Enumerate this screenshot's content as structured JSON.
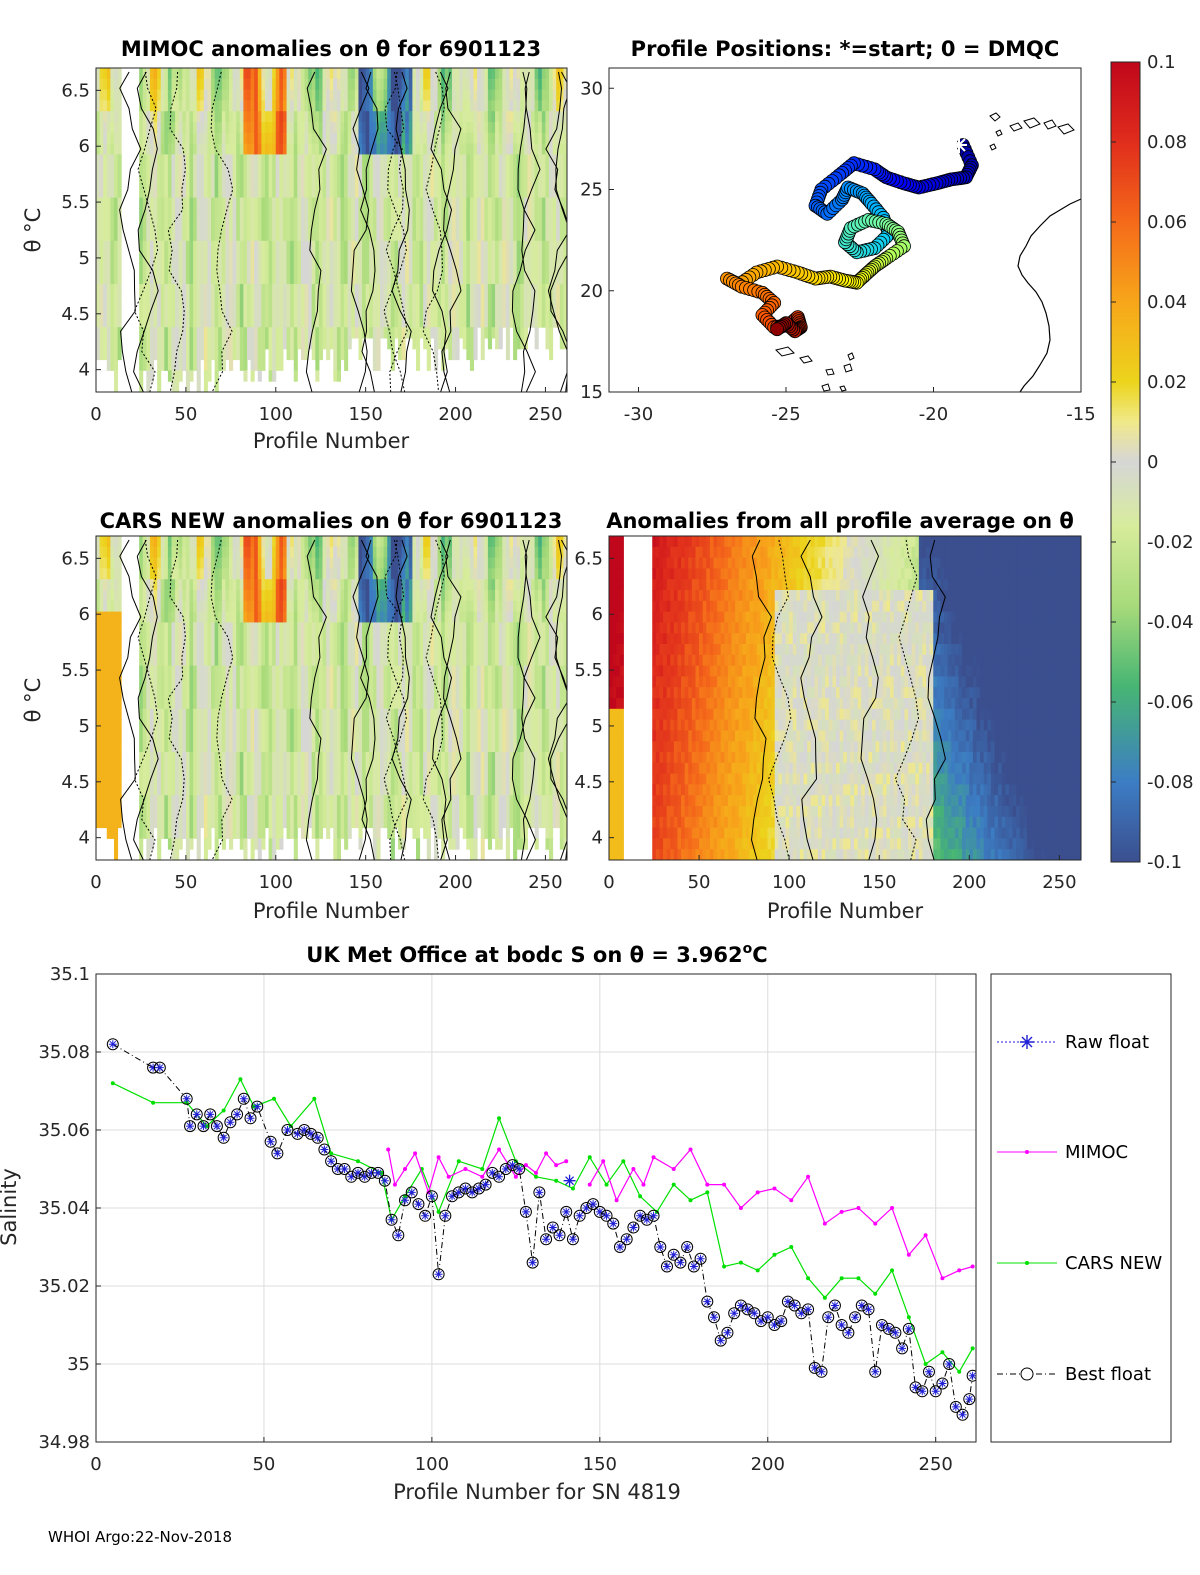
{
  "footer": "WHOI Argo:22-Nov-2018",
  "colors": {
    "raw": "#1f1fd6",
    "mimoc": "#ff00ff",
    "cars": "#00e000",
    "best": "#000000",
    "grid": "#dcdcdc",
    "axis": "#262626"
  },
  "chart_data": [
    {
      "id": "mimoc",
      "type": "heatmap",
      "title": "MIMOC anomalies on θ  for 6901123",
      "xlabel": "Profile Number",
      "ylabel": "θ °C",
      "xlim": [
        0,
        262
      ],
      "ylim": [
        3.8,
        6.7
      ],
      "xticks": [
        "0",
        "50",
        "100",
        "150",
        "200",
        "250"
      ],
      "yticks": [
        "4",
        "4.5",
        "5",
        "5.5",
        "6",
        "6.5"
      ],
      "description_values": {
        "min": -0.1,
        "max": 0.1
      }
    },
    {
      "id": "positions",
      "type": "scatter",
      "title": "Profile Positions: *=start; 0 = DMQC",
      "xlim": [
        -31,
        -15
      ],
      "ylim": [
        15,
        31
      ],
      "xticks": [
        "-30",
        "-25",
        "-20",
        "-15"
      ],
      "yticks": [
        "15",
        "20",
        "25",
        "30"
      ],
      "track_lon": [
        -19.0,
        -18.7,
        -18.9,
        -19.4,
        -19.9,
        -20.5,
        -21.0,
        -21.6,
        -22.0,
        -22.7,
        -23.2,
        -23.8,
        -24.0,
        -23.6,
        -23.1,
        -22.9,
        -22.4,
        -22.1,
        -21.7,
        -21.5,
        -22.0,
        -22.6,
        -23.0,
        -22.8,
        -22.2,
        -21.6,
        -21.2,
        -21.0,
        -21.6,
        -22.0,
        -22.3,
        -22.6,
        -23.0,
        -23.5,
        -24.0,
        -24.6,
        -25.3,
        -26.0,
        -26.6,
        -27.0,
        -26.5,
        -25.8,
        -25.4,
        -25.8,
        -25.4,
        -24.9,
        -24.6,
        -24.5,
        -24.7,
        -25.0,
        -25.3
      ],
      "track_lat": [
        27.2,
        26.2,
        25.6,
        25.5,
        25.3,
        25.1,
        25.3,
        25.6,
        26.0,
        26.3,
        25.7,
        25.0,
        24.2,
        23.8,
        24.5,
        25.1,
        24.8,
        24.3,
        23.6,
        22.8,
        22.1,
        21.9,
        22.4,
        23.1,
        23.5,
        23.3,
        22.9,
        22.2,
        21.6,
        21.2,
        20.8,
        20.4,
        20.5,
        20.7,
        20.6,
        20.9,
        21.2,
        20.9,
        20.3,
        20.6,
        20.2,
        19.9,
        19.4,
        18.8,
        18.2,
        18.3,
        18.7,
        18.2,
        18.0,
        18.4,
        18.1
      ]
    },
    {
      "id": "cars",
      "type": "heatmap",
      "title": "CARS NEW anomalies on θ for 6901123",
      "xlabel": "Profile Number",
      "ylabel": "θ °C",
      "xlim": [
        0,
        262
      ],
      "ylim": [
        3.8,
        6.7
      ],
      "xticks": [
        "0",
        "50",
        "100",
        "150",
        "200",
        "250"
      ],
      "yticks": [
        "4",
        "4.5",
        "5",
        "5.5",
        "6",
        "6.5"
      ]
    },
    {
      "id": "allavg",
      "type": "heatmap",
      "title": "Anomalies from all profile average on θ",
      "xlabel": "Profile Number",
      "xlim": [
        0,
        262
      ],
      "ylim": [
        3.8,
        6.7
      ],
      "xticks": [
        "0",
        "50",
        "100",
        "150",
        "200",
        "250"
      ],
      "yticks": [
        "4",
        "4.5",
        "5",
        "5.5",
        "6",
        "6.5"
      ]
    },
    {
      "id": "colorbar",
      "type": "colorbar",
      "range": [
        -0.1,
        0.1
      ],
      "ticks": [
        "0.1",
        "0.08",
        "0.06",
        "0.04",
        "0.02",
        "0",
        "-0.02",
        "-0.04",
        "-0.06",
        "-0.08",
        "-0.1"
      ]
    },
    {
      "id": "salinity",
      "type": "line",
      "title_main": "UK Met Office at bodc S on θ = 3.962",
      "title_sup": "o",
      "title_end": "C",
      "xlabel": "Profile Number for SN 4819",
      "ylabel": "Salinity",
      "xlim": [
        0,
        262
      ],
      "ylim": [
        34.98,
        35.1
      ],
      "xticks": [
        "0",
        "50",
        "100",
        "150",
        "200",
        "250"
      ],
      "yticks": [
        "34.98",
        "35",
        "35.02",
        "35.04",
        "35.06",
        "35.08",
        "35.1"
      ],
      "legend": [
        "Raw float",
        "MIMOC",
        "CARS NEW",
        "Best float"
      ],
      "series": [
        {
          "name": "CARS NEW",
          "x": [
            5,
            17,
            27,
            33,
            38,
            43,
            47,
            53,
            58,
            65,
            70,
            78,
            85,
            88,
            92,
            97,
            102,
            108,
            115,
            120,
            125,
            131,
            137,
            142,
            147,
            152,
            157,
            162,
            167,
            172,
            177,
            182,
            187,
            192,
            197,
            202,
            207,
            212,
            217,
            222,
            227,
            232,
            237,
            242,
            247,
            252,
            257,
            261
          ],
          "y": [
            35.072,
            35.067,
            35.067,
            35.061,
            35.065,
            35.073,
            35.066,
            35.068,
            35.061,
            35.068,
            35.054,
            35.052,
            35.049,
            35.037,
            35.043,
            35.05,
            35.039,
            35.052,
            35.05,
            35.063,
            35.052,
            35.048,
            35.047,
            35.045,
            35.053,
            35.046,
            35.052,
            35.043,
            35.039,
            35.046,
            35.042,
            35.044,
            35.025,
            35.026,
            35.024,
            35.028,
            35.03,
            35.022,
            35.017,
            35.022,
            35.022,
            35.018,
            35.024,
            35.012,
            35.0,
            35.003,
            34.998,
            35.004
          ]
        },
        {
          "name": "MIMOC",
          "x": [
            87,
            89,
            92,
            95,
            99,
            102,
            105,
            110,
            115,
            120,
            125,
            128,
            131,
            134,
            137,
            140,
            147,
            151,
            155,
            160,
            163,
            166,
            172,
            177,
            182,
            187,
            192,
            197,
            202,
            207,
            212,
            217,
            222,
            227,
            232,
            237,
            242,
            247,
            252,
            257,
            261
          ],
          "y": [
            35.055,
            35.046,
            35.05,
            35.054,
            35.044,
            35.053,
            35.048,
            35.05,
            35.048,
            35.055,
            35.048,
            35.051,
            35.049,
            35.054,
            35.051,
            35.052,
            35.046,
            35.052,
            35.042,
            35.05,
            35.046,
            35.053,
            35.05,
            35.055,
            35.046,
            35.046,
            35.04,
            35.044,
            35.045,
            35.042,
            35.048,
            35.036,
            35.039,
            35.04,
            35.036,
            35.04,
            35.028,
            35.033,
            35.022,
            35.024,
            35.025
          ]
        },
        {
          "name": "Best float",
          "x": [
            5,
            17,
            19,
            27,
            28,
            30,
            32,
            34,
            36,
            38,
            40,
            42,
            44,
            46,
            48,
            52,
            54,
            57,
            60,
            62,
            64,
            66,
            68,
            70,
            72,
            74,
            76,
            78,
            80,
            82,
            84,
            86,
            88,
            90,
            92,
            94,
            96,
            98,
            100,
            102,
            104,
            106,
            108,
            110,
            112,
            114,
            116,
            118,
            120,
            122,
            124,
            126,
            128,
            130,
            132,
            134,
            136,
            138,
            140,
            142,
            144,
            146,
            148,
            150,
            152,
            154,
            156,
            158,
            160,
            162,
            164,
            166,
            168,
            170,
            172,
            174,
            176,
            178,
            180,
            182,
            184,
            186,
            188,
            190,
            192,
            194,
            196,
            198,
            200,
            202,
            204,
            206,
            208,
            210,
            212,
            214,
            216,
            218,
            220,
            222,
            224,
            226,
            228,
            230,
            232,
            234,
            236,
            238,
            240,
            242,
            244,
            246,
            248,
            250,
            252,
            254,
            256,
            258,
            260,
            261
          ],
          "y": [
            35.082,
            35.076,
            35.076,
            35.068,
            35.061,
            35.064,
            35.061,
            35.064,
            35.061,
            35.058,
            35.062,
            35.064,
            35.068,
            35.063,
            35.066,
            35.057,
            35.054,
            35.06,
            35.059,
            35.06,
            35.059,
            35.058,
            35.055,
            35.052,
            35.05,
            35.05,
            35.048,
            35.049,
            35.048,
            35.049,
            35.049,
            35.047,
            35.037,
            35.033,
            35.042,
            35.044,
            35.041,
            35.038,
            35.043,
            35.023,
            35.038,
            35.043,
            35.044,
            35.045,
            35.044,
            35.045,
            35.046,
            35.049,
            35.048,
            35.05,
            35.051,
            35.05,
            35.039,
            35.026,
            35.044,
            35.032,
            35.035,
            35.033,
            35.039,
            35.032,
            35.038,
            35.04,
            35.041,
            35.039,
            35.038,
            35.036,
            35.03,
            35.032,
            35.035,
            35.038,
            35.037,
            35.038,
            35.03,
            35.025,
            35.028,
            35.026,
            35.03,
            35.025,
            35.027,
            35.016,
            35.012,
            35.006,
            35.008,
            35.013,
            35.015,
            35.014,
            35.013,
            35.011,
            35.012,
            35.01,
            35.011,
            35.016,
            35.015,
            35.013,
            35.014,
            34.999,
            34.998,
            35.012,
            35.015,
            35.01,
            35.008,
            35.012,
            35.015,
            35.014,
            34.998,
            35.01,
            35.009,
            35.008,
            35.004,
            35.009,
            34.994,
            34.993,
            34.998,
            34.993,
            34.995,
            35.0,
            34.989,
            34.987,
            34.991,
            34.997
          ]
        },
        {
          "name": "Raw float",
          "x": [
            141
          ],
          "y": [
            35.047
          ]
        }
      ]
    }
  ]
}
